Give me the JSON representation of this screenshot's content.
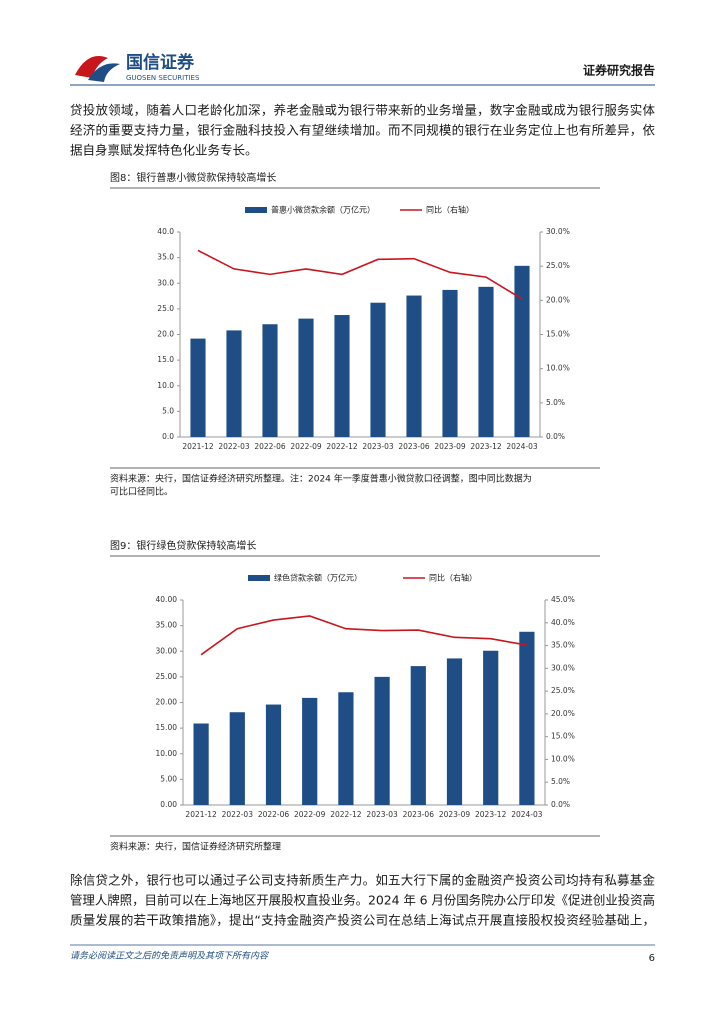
{
  "header": {
    "logo": "国信证券",
    "logo_en": "GUOSEN SECURITIES",
    "label": "证券研究报告"
  },
  "paragraphs": [
    [
      "贷投放领域，随着人口老龄化加深，养老金融或为银行带来新的业务增量，数字金融或成为银行服务实体",
      "经济的重要支持力量，银行金融科技投入有望继续增加。而不同规模的银行在业务定位上也有所差异，依",
      "据自身禀赋发挥特色化业务专长。"
    ],
    [
      "除信贷之外，银行也可以通过子公司支持新质生产力。如五大行下属的金融资产投资公司均持有私募基金",
      "管理人牌照，目前可以在上海地区开展股权直投业务。2024 年 6 月份国务院办公厅印发《促进创业投资高",
      "质量发展的若干政策措施》，提出“支持金融资产投资公司在总结上海试点开展直接股权投资经验基础上，"
    ]
  ],
  "figures": [
    {
      "caption": "图8：银行普惠小微贷款保持较高增长",
      "source": [
        "资料来源：央行，国信证券经济研究所整理。注：2024 年一季度普惠小微贷款口径调整，图中同比数据为",
        "可比口径同比。"
      ]
    },
    {
      "caption": "图9：银行绿色贷款保持较高增长",
      "source": [
        "资料来源：央行，国信证券经济研究所整理"
      ]
    }
  ],
  "chart_data": [
    {
      "type": "bar_line",
      "categories": [
        "2021-12",
        "2022-03",
        "2022-06",
        "2022-09",
        "2022-12",
        "2023-03",
        "2023-06",
        "2023-09",
        "2023-12",
        "2024-03"
      ],
      "series": [
        {
          "name": "普惠小微贷款余额（万亿元）",
          "type": "bar",
          "color": "#1f4e87",
          "values": [
            19.2,
            20.8,
            22.0,
            23.1,
            23.8,
            26.2,
            27.6,
            28.7,
            29.3,
            33.4
          ]
        },
        {
          "name": "同比（右轴）",
          "type": "line",
          "axis": "y2",
          "color": "#c8161d",
          "values": [
            27.3,
            24.6,
            23.8,
            24.6,
            23.8,
            26.0,
            26.1,
            24.1,
            23.4,
            20.2
          ]
        }
      ],
      "ylim": [
        0,
        40
      ],
      "yticks": [
        {
          "value": 0,
          "label": "0.0"
        },
        {
          "value": 5,
          "label": "5.0"
        },
        {
          "value": 10,
          "label": "10.0"
        },
        {
          "value": 15,
          "label": "15.0"
        },
        {
          "value": 20,
          "label": "20.0"
        },
        {
          "value": 25,
          "label": "25.0"
        },
        {
          "value": 30,
          "label": "30.0"
        },
        {
          "value": 35,
          "label": "35.0"
        },
        {
          "value": 40,
          "label": "40.0"
        }
      ],
      "y2lim": [
        0,
        30
      ],
      "y2ticks": [
        {
          "value": 0,
          "label": "0.0%"
        },
        {
          "value": 5,
          "label": "5.0%"
        },
        {
          "value": 10,
          "label": "10.0%"
        },
        {
          "value": 15,
          "label": "15.0%"
        },
        {
          "value": 20,
          "label": "20.0%"
        },
        {
          "value": 25,
          "label": "25.0%"
        },
        {
          "value": 30,
          "label": "30.0%"
        }
      ]
    },
    {
      "type": "bar_line",
      "categories": [
        "2021-12",
        "2022-03",
        "2022-06",
        "2022-09",
        "2022-12",
        "2023-03",
        "2023-06",
        "2023-09",
        "2023-12",
        "2024-03"
      ],
      "series": [
        {
          "name": "绿色贷款余额（万亿元）",
          "type": "bar",
          "color": "#1f4e87",
          "values": [
            15.9,
            18.1,
            19.6,
            20.9,
            22.0,
            25.0,
            27.1,
            28.6,
            30.1,
            33.8
          ]
        },
        {
          "name": "同比（右轴）",
          "type": "line",
          "axis": "y2",
          "color": "#c8161d",
          "values": [
            33.0,
            38.7,
            40.6,
            41.5,
            38.7,
            38.3,
            38.4,
            36.8,
            36.5,
            35.1
          ]
        }
      ],
      "ylim": [
        0,
        40
      ],
      "yticks": [
        {
          "value": 0,
          "label": "0.00"
        },
        {
          "value": 5,
          "label": "5.00"
        },
        {
          "value": 10,
          "label": "10.00"
        },
        {
          "value": 15,
          "label": "15.00"
        },
        {
          "value": 20,
          "label": "20.00"
        },
        {
          "value": 25,
          "label": "25.00"
        },
        {
          "value": 30,
          "label": "30.00"
        },
        {
          "value": 35,
          "label": "35.00"
        },
        {
          "value": 40,
          "label": "40.00"
        }
      ],
      "y2lim": [
        0,
        45
      ],
      "y2ticks": [
        {
          "value": 0,
          "label": "0.0%"
        },
        {
          "value": 5,
          "label": "5.0%"
        },
        {
          "value": 10,
          "label": "10.0%"
        },
        {
          "value": 15,
          "label": "15.0%"
        },
        {
          "value": 20,
          "label": "20.0%"
        },
        {
          "value": 25,
          "label": "25.0%"
        },
        {
          "value": 30,
          "label": "30.0%"
        },
        {
          "value": 35,
          "label": "35.0%"
        },
        {
          "value": 40,
          "label": "40.0%"
        },
        {
          "value": 45,
          "label": "45.0%"
        }
      ]
    }
  ],
  "footer": {
    "disclaimer": "请务必阅读正文之后的免责声明及其项下所有内容",
    "page": "6"
  }
}
